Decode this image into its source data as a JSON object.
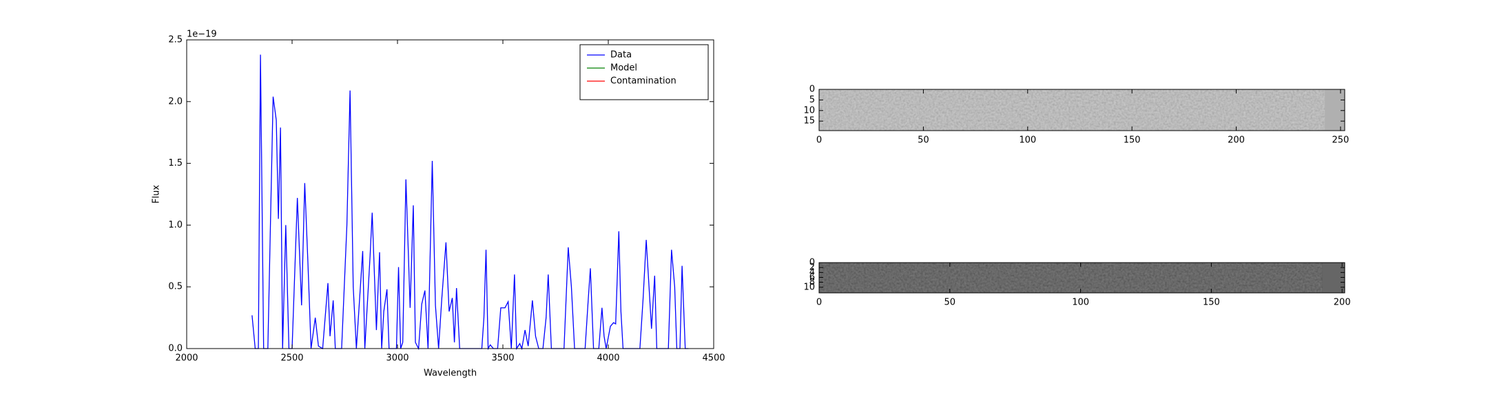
{
  "chart_data": [
    {
      "type": "line",
      "xlabel": "Wavelength",
      "ylabel": "Flux",
      "y_offset_label": "1e−19",
      "xlim": [
        2000,
        4500
      ],
      "xticks": [
        2000,
        2500,
        3000,
        3500,
        4000,
        4500
      ],
      "ylim": [
        0,
        2.5
      ],
      "yticks": [
        {
          "value": 0,
          "label": "0.0"
        },
        {
          "value": 0.5,
          "label": "0.5"
        },
        {
          "value": 1.0,
          "label": "1.0"
        },
        {
          "value": 1.5,
          "label": "1.5"
        },
        {
          "value": 2.0,
          "label": "2.0"
        },
        {
          "value": 2.5,
          "label": "2.5"
        }
      ],
      "legend": "upper right",
      "series": [
        {
          "name": "Data",
          "color": "#0000ff",
          "x": [
            2310,
            2325,
            2340,
            2350,
            2365,
            2385,
            2410,
            2425,
            2435,
            2445,
            2455,
            2470,
            2485,
            2500,
            2525,
            2545,
            2560,
            2575,
            2590,
            2610,
            2625,
            2645,
            2670,
            2680,
            2695,
            2705,
            2735,
            2760,
            2775,
            2790,
            2805,
            2835,
            2845,
            2870,
            2880,
            2900,
            2915,
            2925,
            2935,
            2950,
            2960,
            2995,
            3005,
            3015,
            3025,
            3040,
            3060,
            3075,
            3085,
            3100,
            3115,
            3130,
            3145,
            3165,
            3180,
            3195,
            3210,
            3230,
            3245,
            3260,
            3270,
            3280,
            3295,
            3400,
            3410,
            3420,
            3430,
            3440,
            3455,
            3475,
            3490,
            3510,
            3525,
            3540,
            3555,
            3565,
            3580,
            3590,
            3605,
            3620,
            3640,
            3655,
            3670,
            3690,
            3705,
            3715,
            3730,
            3790,
            3810,
            3825,
            3840,
            3890,
            3905,
            3915,
            3930,
            3955,
            3970,
            3980,
            3990,
            4010,
            4025,
            4035,
            4050,
            4060,
            4070,
            4150,
            4165,
            4180,
            4195,
            4205,
            4220,
            4230,
            4285,
            4300,
            4315,
            4325,
            4340,
            4350,
            4365,
            4380
          ],
          "values": [
            0.27,
            0,
            0,
            2.38,
            0,
            0,
            2.04,
            1.85,
            1.05,
            1.79,
            0,
            1.0,
            0,
            0,
            1.22,
            0.35,
            1.34,
            0.7,
            0,
            0.25,
            0.02,
            0,
            0.53,
            0.1,
            0.39,
            0,
            0,
            1.0,
            2.09,
            0.5,
            0,
            0.79,
            0,
            0.75,
            1.1,
            0.15,
            0.78,
            0,
            0.3,
            0.48,
            0,
            0,
            0.66,
            0,
            0.05,
            1.37,
            0.33,
            1.16,
            0.05,
            0,
            0.36,
            0.47,
            0,
            1.52,
            0.35,
            0,
            0.4,
            0.86,
            0.3,
            0.41,
            0.05,
            0.49,
            0,
            0,
            0.25,
            0.8,
            0,
            0.03,
            0,
            0,
            0.33,
            0.33,
            0.38,
            0,
            0.6,
            0,
            0.04,
            0,
            0.15,
            0.02,
            0.39,
            0.1,
            0,
            0,
            0.25,
            0.6,
            0,
            0,
            0.82,
            0.5,
            0,
            0,
            0.4,
            0.65,
            0,
            0,
            0.33,
            0.1,
            0,
            0.18,
            0.21,
            0.2,
            0.95,
            0.3,
            0,
            0,
            0.4,
            0.88,
            0.45,
            0.16,
            0.59,
            0,
            0,
            0.8,
            0.5,
            0,
            0,
            0.67,
            0,
            0
          ]
        },
        {
          "name": "Model",
          "color": "#008000",
          "x": [],
          "values": []
        },
        {
          "name": "Contamination",
          "color": "#ff0000",
          "x": [],
          "values": []
        }
      ]
    },
    {
      "type": "image",
      "shade": "#b9b9b9",
      "pad_shade": "#b0b0b0",
      "xlim": [
        0,
        252
      ],
      "xticks": [
        0,
        50,
        100,
        150,
        200,
        250
      ],
      "ylim": [
        0,
        19.5
      ],
      "yticks": [
        0,
        5,
        10,
        15
      ],
      "y_inverted": true
    },
    {
      "type": "image",
      "shade": "#3c3c3c",
      "pad_shade": "#666666",
      "xlim": [
        0,
        201
      ],
      "xticks": [
        0,
        50,
        100,
        150,
        200
      ],
      "ylim": [
        0,
        12.3
      ],
      "yticks": [
        0,
        2,
        4,
        6,
        8,
        10
      ],
      "y_inverted": true
    }
  ]
}
